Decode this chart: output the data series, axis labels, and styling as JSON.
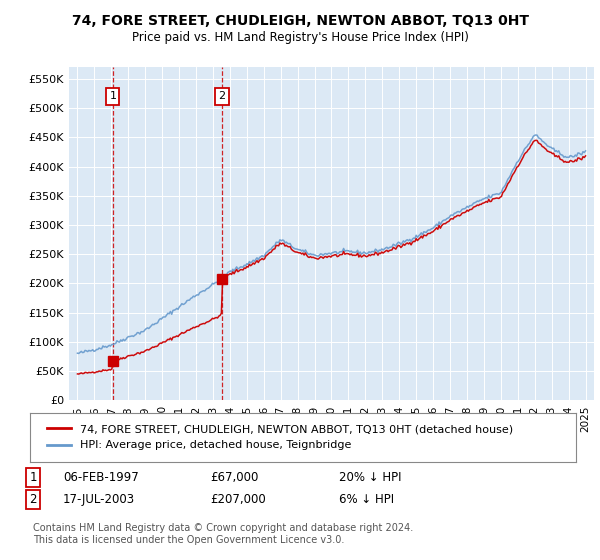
{
  "title": "74, FORE STREET, CHUDLEIGH, NEWTON ABBOT, TQ13 0HT",
  "subtitle": "Price paid vs. HM Land Registry's House Price Index (HPI)",
  "background_color": "#dce9f5",
  "plot_bg_color": "#dce9f5",
  "red_line_color": "#cc0000",
  "blue_line_color": "#6699cc",
  "transaction_1": {
    "date_num": 1997.09,
    "price": 67000,
    "label": "1",
    "date_str": "06-FEB-1997",
    "pct": "20% ↓ HPI"
  },
  "transaction_2": {
    "date_num": 2003.54,
    "price": 207000,
    "label": "2",
    "date_str": "17-JUL-2003",
    "pct": "6% ↓ HPI"
  },
  "ylim": [
    0,
    570000
  ],
  "xlim": [
    1994.5,
    2025.5
  ],
  "yticks": [
    0,
    50000,
    100000,
    150000,
    200000,
    250000,
    300000,
    350000,
    400000,
    450000,
    500000,
    550000
  ],
  "ytick_labels": [
    "£0",
    "£50K",
    "£100K",
    "£150K",
    "£200K",
    "£250K",
    "£300K",
    "£350K",
    "£400K",
    "£450K",
    "£500K",
    "£550K"
  ],
  "legend_label_red": "74, FORE STREET, CHUDLEIGH, NEWTON ABBOT, TQ13 0HT (detached house)",
  "legend_label_blue": "HPI: Average price, detached house, Teignbridge",
  "footer_line1": "Contains HM Land Registry data © Crown copyright and database right 2024.",
  "footer_line2": "This data is licensed under the Open Government Licence v3.0.",
  "xticks": [
    1995,
    1996,
    1997,
    1998,
    1999,
    2000,
    2001,
    2002,
    2003,
    2004,
    2005,
    2006,
    2007,
    2008,
    2009,
    2010,
    2011,
    2012,
    2013,
    2014,
    2015,
    2016,
    2017,
    2018,
    2019,
    2020,
    2021,
    2022,
    2023,
    2024,
    2025
  ],
  "title_fontsize": 10,
  "subtitle_fontsize": 8.5,
  "tick_fontsize": 8,
  "legend_fontsize": 8,
  "table_fontsize": 8.5,
  "footer_fontsize": 7
}
